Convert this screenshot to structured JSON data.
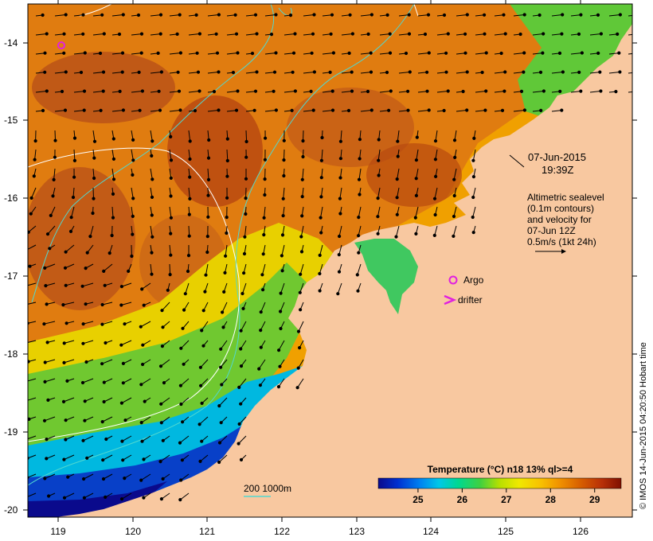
{
  "map": {
    "lat_ticks": [
      "-14",
      "-15",
      "-16",
      "-17",
      "-18",
      "-19",
      "-20"
    ],
    "lon_ticks": [
      "119",
      "120",
      "121",
      "122",
      "123",
      "124",
      "125",
      "126"
    ],
    "lon_range": [
      118.62,
      126.68
    ],
    "lat_range": [
      -20.05,
      -13.6
    ]
  },
  "annotations": {
    "date": "07-Jun-2015",
    "time": "19:39Z",
    "altimetry": [
      "Altimetric sealevel",
      "(0.1m contours)",
      "and velocity for",
      "07-Jun 12Z",
      "0.5m/s (1kt 24h)"
    ]
  },
  "legend": {
    "argo_label": "Argo",
    "drifter_label": "drifter",
    "depth_label": "200  1000m"
  },
  "colorbar": {
    "title": "Temperature (°C) n18 13% ql>=4",
    "ticks": [
      "25",
      "26",
      "27",
      "28",
      "29"
    ],
    "range": [
      24.1,
      29.6
    ],
    "colors": [
      "#0a0a8c",
      "#0030d0",
      "#0080f0",
      "#00c8e8",
      "#00d890",
      "#40d040",
      "#b8e000",
      "#f0e800",
      "#f8c000",
      "#f09000",
      "#d86000",
      "#b83008",
      "#801000"
    ]
  },
  "credit": "© IMOS 14-Jun-2015 04:20:50 Hobart time",
  "colors": {
    "land": "#f8c8a0",
    "contour": "#50d8d0",
    "argo": "#e020e0",
    "drifter": "#e020e0"
  }
}
